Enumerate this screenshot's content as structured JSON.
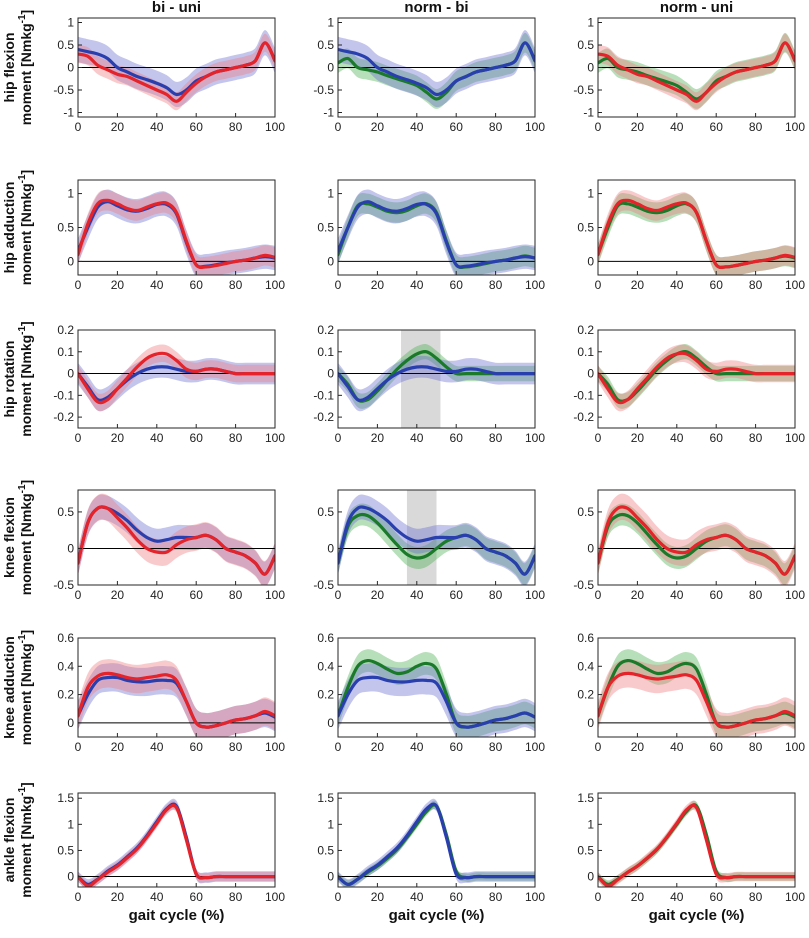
{
  "colors": {
    "norm": "#1a7a2a",
    "bi": "#2a3fae",
    "uni": "#e4232a",
    "norm_band": "#4caf50",
    "bi_band": "#6a6fd0",
    "uni_band": "#f07a80",
    "significance_shade": "#d9d9d9"
  },
  "columns": [
    "bi - uni",
    "norm - bi",
    "norm - uni"
  ],
  "x_label": "gait cycle (%)",
  "x_ticks": [
    0,
    20,
    40,
    60,
    80,
    100
  ],
  "chart_data": [
    {
      "type": "line",
      "name": "hip flexion",
      "ylabel": [
        "hip flexion",
        "moment [Nmkg",
        "-1",
        "]"
      ],
      "ylim": [
        -1.1,
        1.1
      ],
      "yticks": [
        "1",
        "0.5",
        "0",
        "-0.5",
        "-1"
      ],
      "ytick_values": [
        1,
        0.5,
        0,
        -0.5,
        -1
      ],
      "x": [
        0,
        5,
        10,
        15,
        20,
        25,
        30,
        35,
        40,
        45,
        50,
        55,
        60,
        65,
        70,
        75,
        80,
        85,
        90,
        95,
        100
      ],
      "series": {
        "norm": {
          "mean": [
            0.1,
            0.2,
            0.0,
            -0.05,
            -0.1,
            -0.18,
            -0.25,
            -0.32,
            -0.4,
            -0.55,
            -0.7,
            -0.55,
            -0.3,
            -0.2,
            -0.1,
            -0.05,
            0.0,
            0.05,
            0.15,
            0.55,
            0.15
          ],
          "sd": 0.22
        },
        "bi": {
          "mean": [
            0.4,
            0.35,
            0.3,
            0.2,
            0.0,
            -0.1,
            -0.2,
            -0.27,
            -0.35,
            -0.45,
            -0.6,
            -0.5,
            -0.3,
            -0.2,
            -0.1,
            -0.05,
            0.0,
            0.05,
            0.15,
            0.55,
            0.15
          ],
          "sd": 0.28
        },
        "uni": {
          "mean": [
            0.3,
            0.25,
            0.05,
            -0.05,
            -0.15,
            -0.2,
            -0.3,
            -0.4,
            -0.5,
            -0.6,
            -0.75,
            -0.55,
            -0.35,
            -0.2,
            -0.1,
            -0.05,
            0.0,
            0.05,
            0.15,
            0.55,
            0.15
          ],
          "sd": 0.2
        }
      },
      "significance": [
        null,
        null,
        null
      ]
    },
    {
      "type": "line",
      "name": "hip adduction",
      "ylabel": [
        "hip adduction",
        "moment [Nmkg",
        "-1",
        "]"
      ],
      "ylim": [
        -0.2,
        1.2
      ],
      "yticks": [
        "1",
        "0.5",
        "0"
      ],
      "ytick_values": [
        1,
        0.5,
        0
      ],
      "x": [
        0,
        5,
        10,
        15,
        20,
        25,
        30,
        35,
        40,
        45,
        50,
        55,
        60,
        65,
        70,
        75,
        80,
        85,
        90,
        95,
        100
      ],
      "series": {
        "norm": {
          "mean": [
            0.1,
            0.5,
            0.82,
            0.85,
            0.8,
            0.74,
            0.72,
            0.75,
            0.82,
            0.85,
            0.72,
            0.3,
            -0.05,
            -0.08,
            -0.06,
            -0.03,
            0.0,
            0.02,
            0.05,
            0.08,
            0.05
          ],
          "sd": 0.15
        },
        "bi": {
          "mean": [
            0.15,
            0.5,
            0.8,
            0.88,
            0.82,
            0.76,
            0.74,
            0.78,
            0.84,
            0.84,
            0.7,
            0.28,
            -0.05,
            -0.07,
            -0.05,
            -0.02,
            0.0,
            0.02,
            0.05,
            0.07,
            0.05
          ],
          "sd": 0.18
        },
        "uni": {
          "mean": [
            0.1,
            0.55,
            0.85,
            0.9,
            0.85,
            0.78,
            0.75,
            0.8,
            0.85,
            0.86,
            0.72,
            0.3,
            -0.05,
            -0.08,
            -0.06,
            -0.03,
            0.0,
            0.02,
            0.05,
            0.09,
            0.06
          ],
          "sd": 0.15
        }
      },
      "significance": [
        null,
        null,
        null
      ]
    },
    {
      "type": "line",
      "name": "hip rotation",
      "ylabel": [
        "hip rotation",
        "moment [Nmkg",
        "-1",
        "]"
      ],
      "ylim": [
        -0.25,
        0.2
      ],
      "yticks": [
        "0.2",
        "0.1",
        "0",
        "-0.1",
        "-0.2"
      ],
      "ytick_values": [
        0.2,
        0.1,
        0,
        -0.1,
        -0.2
      ],
      "x": [
        0,
        5,
        10,
        15,
        20,
        25,
        30,
        35,
        40,
        45,
        50,
        55,
        60,
        65,
        70,
        75,
        80,
        85,
        90,
        95,
        100
      ],
      "series": {
        "norm": {
          "mean": [
            0.0,
            -0.05,
            -0.12,
            -0.12,
            -0.08,
            -0.03,
            0.02,
            0.06,
            0.09,
            0.1,
            0.07,
            0.03,
            0.0,
            0.0,
            0.0,
            0.0,
            0.0,
            0.0,
            0.0,
            0.0,
            0.0
          ],
          "sd": 0.035
        },
        "bi": {
          "mean": [
            0.0,
            -0.06,
            -0.12,
            -0.11,
            -0.07,
            -0.03,
            0.0,
            0.02,
            0.03,
            0.03,
            0.02,
            0.01,
            0.01,
            0.02,
            0.02,
            0.01,
            0.0,
            0.0,
            0.0,
            0.0,
            0.0
          ],
          "sd": 0.05
        },
        "uni": {
          "mean": [
            0.0,
            -0.07,
            -0.13,
            -0.12,
            -0.07,
            -0.02,
            0.03,
            0.07,
            0.09,
            0.09,
            0.06,
            0.02,
            0.01,
            0.02,
            0.02,
            0.01,
            0.0,
            0.0,
            0.0,
            0.0,
            0.0
          ],
          "sd": 0.04
        }
      },
      "significance": [
        null,
        [
          32,
          52
        ],
        null
      ]
    },
    {
      "type": "line",
      "name": "knee flexion",
      "ylabel": [
        "knee flexion",
        "moment [Nmkg",
        "-1",
        "]"
      ],
      "ylim": [
        -0.5,
        0.8
      ],
      "yticks": [
        "0.5",
        "0",
        "-0.5"
      ],
      "ytick_values": [
        0.5,
        0,
        -0.5
      ],
      "x": [
        0,
        5,
        10,
        15,
        20,
        25,
        30,
        35,
        40,
        45,
        50,
        55,
        60,
        65,
        70,
        75,
        80,
        85,
        90,
        95,
        100
      ],
      "series": {
        "norm": {
          "mean": [
            -0.2,
            0.3,
            0.45,
            0.45,
            0.35,
            0.2,
            0.05,
            -0.08,
            -0.13,
            -0.1,
            0.0,
            0.1,
            0.15,
            0.18,
            0.12,
            0.0,
            -0.05,
            -0.1,
            -0.2,
            -0.35,
            -0.1
          ],
          "sd": 0.15
        },
        "bi": {
          "mean": [
            -0.2,
            0.35,
            0.55,
            0.55,
            0.48,
            0.38,
            0.25,
            0.15,
            0.1,
            0.12,
            0.15,
            0.15,
            0.15,
            0.18,
            0.12,
            0.0,
            -0.05,
            -0.1,
            -0.2,
            -0.35,
            -0.1
          ],
          "sd": 0.17
        },
        "uni": {
          "mean": [
            -0.2,
            0.35,
            0.55,
            0.55,
            0.42,
            0.28,
            0.12,
            0.0,
            -0.05,
            -0.05,
            0.05,
            0.12,
            0.15,
            0.18,
            0.12,
            0.0,
            -0.05,
            -0.1,
            -0.2,
            -0.35,
            -0.1
          ],
          "sd": 0.18
        }
      },
      "significance": [
        null,
        [
          35,
          50
        ],
        null
      ]
    },
    {
      "type": "line",
      "name": "knee adduction",
      "ylabel": [
        "knee adduction",
        "moment [Nmkg",
        "-1",
        "]"
      ],
      "ylim": [
        -0.1,
        0.6
      ],
      "yticks": [
        "0.6",
        "0.4",
        "0.2",
        "0"
      ],
      "ytick_values": [
        0.6,
        0.4,
        0.2,
        0
      ],
      "x": [
        0,
        5,
        10,
        15,
        20,
        25,
        30,
        35,
        40,
        45,
        50,
        55,
        60,
        65,
        70,
        75,
        80,
        85,
        90,
        95,
        100
      ],
      "series": {
        "norm": {
          "mean": [
            0.05,
            0.25,
            0.4,
            0.44,
            0.42,
            0.38,
            0.35,
            0.36,
            0.4,
            0.42,
            0.38,
            0.2,
            0.0,
            -0.03,
            -0.02,
            0.0,
            0.02,
            0.03,
            0.05,
            0.07,
            0.04
          ],
          "sd": 0.08
        },
        "bi": {
          "mean": [
            0.05,
            0.2,
            0.3,
            0.32,
            0.32,
            0.3,
            0.29,
            0.29,
            0.3,
            0.3,
            0.28,
            0.15,
            0.0,
            -0.03,
            -0.02,
            0.0,
            0.02,
            0.03,
            0.05,
            0.07,
            0.04
          ],
          "sd": 0.1
        },
        "uni": {
          "mean": [
            0.05,
            0.25,
            0.33,
            0.35,
            0.34,
            0.32,
            0.31,
            0.32,
            0.33,
            0.34,
            0.3,
            0.15,
            0.0,
            -0.03,
            -0.02,
            0.0,
            0.02,
            0.03,
            0.05,
            0.08,
            0.05
          ],
          "sd": 0.1
        }
      },
      "significance": [
        null,
        null,
        null
      ]
    },
    {
      "type": "line",
      "name": "ankle flexion",
      "ylabel": [
        "ankle flexion",
        "moment [Nmkg",
        "-1",
        "]"
      ],
      "ylim": [
        -0.2,
        1.6
      ],
      "yticks": [
        "1.5",
        "1",
        "0.5",
        "0"
      ],
      "ytick_values": [
        1.5,
        1,
        0.5,
        0
      ],
      "x": [
        0,
        5,
        10,
        15,
        20,
        25,
        30,
        35,
        40,
        45,
        50,
        55,
        60,
        65,
        70,
        75,
        80,
        85,
        90,
        95,
        100
      ],
      "series": {
        "norm": {
          "mean": [
            0.0,
            -0.15,
            -0.05,
            0.08,
            0.2,
            0.35,
            0.52,
            0.75,
            1.0,
            1.25,
            1.35,
            0.8,
            0.1,
            -0.02,
            0.0,
            0.0,
            0.0,
            0.0,
            0.0,
            0.0,
            0.0
          ],
          "sd": 0.08
        },
        "bi": {
          "mean": [
            0.0,
            -0.15,
            -0.05,
            0.1,
            0.22,
            0.38,
            0.55,
            0.78,
            1.05,
            1.3,
            1.35,
            0.75,
            0.05,
            -0.02,
            0.0,
            0.0,
            0.0,
            0.0,
            0.0,
            0.0,
            0.0
          ],
          "sd": 0.1
        },
        "uni": {
          "mean": [
            0.0,
            -0.18,
            -0.06,
            0.08,
            0.2,
            0.36,
            0.53,
            0.76,
            1.02,
            1.28,
            1.32,
            0.7,
            0.05,
            -0.02,
            0.0,
            0.0,
            0.0,
            0.0,
            0.0,
            0.0,
            0.0
          ],
          "sd": 0.09
        }
      },
      "significance": [
        null,
        null,
        null
      ]
    }
  ]
}
